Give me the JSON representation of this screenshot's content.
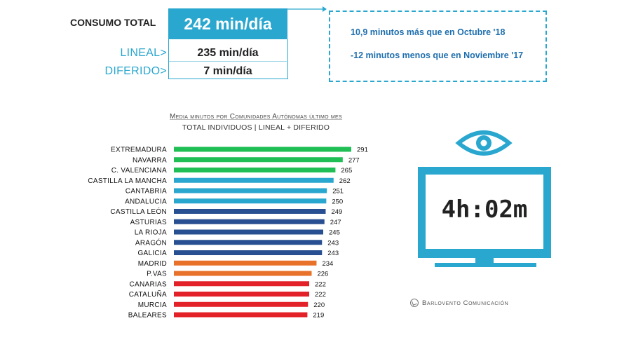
{
  "summary": {
    "total_label": "CONSUMO TOTAL",
    "total_value": "242 min/día",
    "lineal_label": "LINEAL>",
    "lineal_value": "235 min/día",
    "diferido_label": "DIFERIDO>",
    "diferido_value": "7 min/día"
  },
  "info": {
    "line1": "10,9 minutos más que en Octubre '18",
    "line2": "-12 minutos menos que en Noviembre '17"
  },
  "monitor": {
    "display": "4h:02m",
    "icon": "eye-icon"
  },
  "brand": "Barlovento Comunicación",
  "colors": {
    "accent": "#2aa7cf",
    "green": "#1fbf55",
    "lightblue": "#2aa7cf",
    "darkblue": "#284f91",
    "orange": "#e8722a",
    "red": "#e32129"
  },
  "chart_data": {
    "type": "bar",
    "orientation": "horizontal",
    "title": "Media minutos por Comunidades Autónomas último mes",
    "subtitle": "TOTAL INDIVIDUOS  | LINEAL + DIFERIDO",
    "xlim": [
      0,
      291
    ],
    "grid": false,
    "categories": [
      "EXTREMADURA",
      "NAVARRA",
      "C. VALENCIANA",
      "CASTILLA LA MANCHA",
      "CANTABRIA",
      "ANDALUCIA",
      "CASTILLA LEÓN",
      "ASTURIAS",
      "LA RIOJA",
      "ARAGÓN",
      "GALICIA",
      "MADRID",
      "P.VAS",
      "CANARIAS",
      "CATALUÑA",
      "MURCIA",
      "BALEARES"
    ],
    "values": [
      291,
      277,
      265,
      262,
      251,
      250,
      249,
      247,
      245,
      243,
      243,
      234,
      226,
      222,
      222,
      220,
      219
    ],
    "bar_colors": [
      "#1fbf55",
      "#1fbf55",
      "#1fbf55",
      "#2aa7cf",
      "#2aa7cf",
      "#2aa7cf",
      "#284f91",
      "#284f91",
      "#284f91",
      "#284f91",
      "#284f91",
      "#e8722a",
      "#e8722a",
      "#e32129",
      "#e32129",
      "#e32129",
      "#e32129"
    ]
  }
}
